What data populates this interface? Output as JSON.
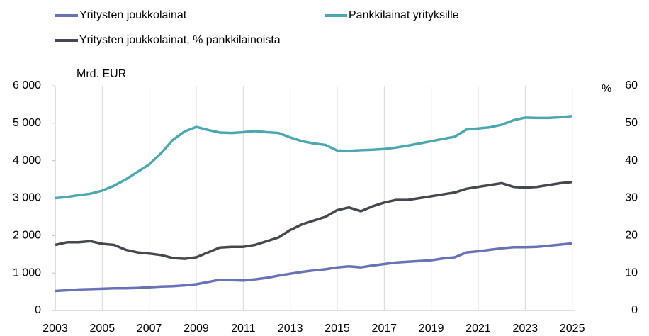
{
  "chart_data": {
    "type": "line",
    "y_label": "Mrd. EUR",
    "y2_label": "%",
    "x": [
      2003,
      2003.5,
      2004,
      2004.5,
      2005,
      2005.5,
      2006,
      2006.5,
      2007,
      2007.5,
      2008,
      2008.5,
      2009,
      2009.5,
      2010,
      2010.5,
      2011,
      2011.5,
      2012,
      2012.5,
      2013,
      2013.5,
      2014,
      2014.5,
      2015,
      2015.5,
      2016,
      2016.5,
      2017,
      2017.5,
      2018,
      2018.5,
      2019,
      2019.5,
      2020,
      2020.5,
      2021,
      2021.5,
      2022,
      2022.5,
      2023,
      2023.5,
      2024,
      2024.5,
      2025
    ],
    "series": [
      {
        "name": "Yritysten joukkolainat",
        "color": "#6873b5",
        "values": [
          520,
          540,
          560,
          570,
          580,
          590,
          590,
          600,
          620,
          640,
          650,
          670,
          700,
          760,
          820,
          810,
          800,
          830,
          870,
          930,
          980,
          1030,
          1070,
          1100,
          1150,
          1180,
          1150,
          1200,
          1240,
          1280,
          1300,
          1320,
          1340,
          1390,
          1420,
          1550,
          1580,
          1620,
          1660,
          1690,
          1690,
          1700,
          1730,
          1760,
          1790
        ]
      },
      {
        "name": "Pankkilainat yrityksille",
        "color": "#4da7b0",
        "values": [
          3000,
          3030,
          3080,
          3120,
          3200,
          3330,
          3500,
          3700,
          3900,
          4200,
          4550,
          4780,
          4900,
          4820,
          4750,
          4740,
          4760,
          4790,
          4760,
          4740,
          4620,
          4520,
          4460,
          4420,
          4270,
          4260,
          4280,
          4290,
          4310,
          4350,
          4400,
          4460,
          4520,
          4580,
          4640,
          4830,
          4860,
          4890,
          4960,
          5080,
          5150,
          5140,
          5140,
          5160,
          5190
        ]
      },
      {
        "name": "Yritysten joukkolainat, % pankkilainoista",
        "color": "#46484f",
        "axis": "y2",
        "values": [
          17.5,
          18.2,
          18.2,
          18.5,
          17.8,
          17.5,
          16.2,
          15.5,
          15.2,
          14.8,
          14.0,
          13.8,
          14.2,
          15.5,
          16.8,
          17.0,
          17.0,
          17.5,
          18.5,
          19.5,
          21.5,
          23.0,
          24.0,
          25.0,
          26.8,
          27.5,
          26.5,
          27.8,
          28.8,
          29.5,
          29.5,
          30.0,
          30.5,
          31.0,
          31.5,
          32.5,
          33.0,
          33.5,
          34.0,
          33.0,
          32.8,
          33.0,
          33.5,
          34.0,
          34.3
        ]
      }
    ],
    "xlim": [
      2003,
      2025.1
    ],
    "xticks": [
      2003,
      2005,
      2007,
      2009,
      2011,
      2013,
      2015,
      2017,
      2019,
      2021,
      2023,
      2025
    ],
    "ylim": [
      0,
      6000
    ],
    "yticks": [
      0,
      {
        "value": 1000,
        "label": "1 000"
      },
      {
        "value": 2000,
        "label": "2 000"
      },
      {
        "value": 3000,
        "label": "3 000"
      },
      {
        "value": 4000,
        "label": "4 000"
      },
      {
        "value": 5000,
        "label": "5 000"
      },
      {
        "value": 6000,
        "label": "6 000"
      }
    ],
    "y2lim": [
      0,
      60
    ],
    "y2ticks": [
      0,
      10,
      20,
      30,
      40,
      50,
      60
    ],
    "grid": "x"
  }
}
